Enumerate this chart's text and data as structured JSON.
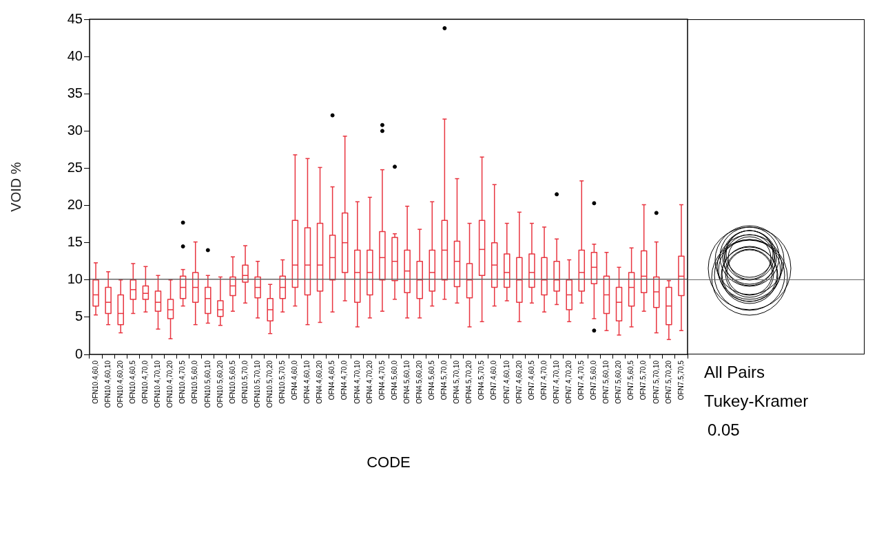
{
  "chart_data": {
    "type": "box",
    "xlabel": "CODE",
    "ylabel": "VOID %",
    "color": "#e8343f",
    "categories": [
      "OFN10.4,60,0",
      "OFN10.4,60,10",
      "OFN10.4,60,20",
      "OFN10.4,60,5",
      "OFN10.4,70,0",
      "OFN10.4,70,10",
      "OFN10.4,70,20",
      "OFN10.4,70,5",
      "OFN10.5,60,0",
      "OFN10.5,60,10",
      "OFN10.5,60,20",
      "OFN10.5,60,5",
      "OFN10.5,70,0",
      "OFN10.5,70,10",
      "OFN10.5,70,20",
      "OFN10.5,70,5",
      "OFN4.4,60,0",
      "OFN4.4,60,10",
      "OFN4.4,60,20",
      "OFN4.4,60,5",
      "OFN4.4,70,0",
      "OFN4.4,70,10",
      "OFN4.4,70,20",
      "OFN4.4,70,5",
      "OFN4.5,60,0",
      "OFN4.5,60,10",
      "OFN4.5,60,20",
      "OFN4.5,60,5",
      "OFN4.5,70,0",
      "OFN4.5,70,10",
      "OFN4.5,70,20",
      "OFN4.5,70,5",
      "OFN7.4,60,0",
      "OFN7.4,60,10",
      "OFN7.4,60,20",
      "OFN7.4,60,5",
      "OFN7.4,70,0",
      "OFN7.4,70,10",
      "OFN7.4,70,20",
      "OFN7.4,70,5",
      "OFN7.5,60,0",
      "OFN7.5,60,10",
      "OFN7.5,60,20",
      "OFN7.5,60,5",
      "OFN7.5,70,0",
      "OFN7.5,70,10",
      "OFN7.5,70,20",
      "OFN7.5,70,5"
    ],
    "boxes": [
      {
        "low": 5.3,
        "q1": 6.5,
        "median": 8,
        "q3": 10,
        "high": 12.3
      },
      {
        "low": 4.0,
        "q1": 5.5,
        "median": 7,
        "q3": 9,
        "high": 11.1
      },
      {
        "low": 2.9,
        "q1": 4,
        "median": 5.5,
        "q3": 8,
        "high": 10.0
      },
      {
        "low": 5.5,
        "q1": 7.4,
        "median": 8.7,
        "q3": 10.0,
        "high": 12.2
      },
      {
        "low": 5.7,
        "q1": 7.4,
        "median": 8.2,
        "q3": 9.2,
        "high": 11.8
      },
      {
        "low": 3.4,
        "q1": 5.8,
        "median": 7.0,
        "q3": 8.5,
        "high": 10.6
      },
      {
        "low": 2.1,
        "q1": 4.8,
        "median": 6.0,
        "q3": 7.4,
        "high": 10.0
      },
      {
        "low": 6.5,
        "q1": 7.5,
        "median": 9,
        "q3": 10.5,
        "high": 11.4,
        "outliers": [
          14.5,
          17.7
        ]
      },
      {
        "low": 4.0,
        "q1": 7,
        "median": 9,
        "q3": 11,
        "high": 15.1
      },
      {
        "low": 4.2,
        "q1": 5.5,
        "median": 7.5,
        "q3": 9,
        "high": 10.6,
        "outliers": [
          14.0
        ]
      },
      {
        "low": 3.9,
        "q1": 5.1,
        "median": 6.0,
        "q3": 7.2,
        "high": 10.4
      },
      {
        "low": 5.8,
        "q1": 7.9,
        "median": 9.2,
        "q3": 10.4,
        "high": 13.1
      },
      {
        "low": 6.9,
        "q1": 9.7,
        "median": 10.6,
        "q3": 12.0,
        "high": 14.6
      },
      {
        "low": 4.9,
        "q1": 7.6,
        "median": 9.0,
        "q3": 10.4,
        "high": 12.5
      },
      {
        "low": 2.8,
        "q1": 4.5,
        "median": 6,
        "q3": 7.5,
        "high": 9.4
      },
      {
        "low": 5.7,
        "q1": 7.5,
        "median": 9,
        "q3": 10.5,
        "high": 12.7
      },
      {
        "low": 6.5,
        "q1": 9,
        "median": 12,
        "q3": 18,
        "high": 26.8
      },
      {
        "low": 4.0,
        "q1": 8,
        "median": 12,
        "q3": 17,
        "high": 26.3
      },
      {
        "low": 4.3,
        "q1": 8.5,
        "median": 12.0,
        "q3": 17.6,
        "high": 25.1
      },
      {
        "low": 5.7,
        "q1": 10,
        "median": 13,
        "q3": 16,
        "high": 22.5,
        "outliers": [
          32.1
        ]
      },
      {
        "low": 7.2,
        "q1": 11,
        "median": 15,
        "q3": 19,
        "high": 29.3
      },
      {
        "low": 3.7,
        "q1": 7,
        "median": 11,
        "q3": 14,
        "high": 20.5
      },
      {
        "low": 4.9,
        "q1": 8,
        "median": 11,
        "q3": 14,
        "high": 21.1
      },
      {
        "low": 5.8,
        "q1": 10,
        "median": 13,
        "q3": 16.5,
        "high": 24.8,
        "outliers": [
          30.0,
          30.8
        ]
      },
      {
        "low": 7.4,
        "q1": 9.9,
        "median": 12.5,
        "q3": 15.7,
        "high": 16.2,
        "outliers": [
          25.2
        ]
      },
      {
        "low": 4.9,
        "q1": 8.3,
        "median": 11.2,
        "q3": 14.0,
        "high": 19.9
      },
      {
        "low": 4.9,
        "q1": 7.5,
        "median": 10,
        "q3": 12.5,
        "high": 16.8
      },
      {
        "low": 6.5,
        "q1": 8.5,
        "median": 11,
        "q3": 14,
        "high": 20.5
      },
      {
        "low": 7.4,
        "q1": 10,
        "median": 14,
        "q3": 18,
        "high": 31.6,
        "outliers": [
          43.8
        ]
      },
      {
        "low": 6.9,
        "q1": 9.1,
        "median": 12.5,
        "q3": 15.2,
        "high": 23.6
      },
      {
        "low": 3.7,
        "q1": 7.6,
        "median": 10.0,
        "q3": 12.2,
        "high": 17.6
      },
      {
        "low": 4.4,
        "q1": 10.6,
        "median": 14.1,
        "q3": 18.0,
        "high": 26.5
      },
      {
        "low": 6.5,
        "q1": 9,
        "median": 12,
        "q3": 15,
        "high": 22.8
      },
      {
        "low": 7.2,
        "q1": 9,
        "median": 11,
        "q3": 13.5,
        "high": 17.6
      },
      {
        "low": 4.4,
        "q1": 7,
        "median": 10,
        "q3": 13,
        "high": 19.1
      },
      {
        "low": 6.9,
        "q1": 9,
        "median": 11,
        "q3": 13.5,
        "high": 17.6
      },
      {
        "low": 5.7,
        "q1": 8,
        "median": 10,
        "q3": 13,
        "high": 17.1
      },
      {
        "low": 6.7,
        "q1": 8.5,
        "median": 10,
        "q3": 12.5,
        "high": 15.5,
        "outliers": [
          21.5
        ]
      },
      {
        "low": 4.4,
        "q1": 6,
        "median": 8,
        "q3": 10,
        "high": 12.7
      },
      {
        "low": 6.9,
        "q1": 8.5,
        "median": 11,
        "q3": 14,
        "high": 23.3
      },
      {
        "low": 4.8,
        "q1": 9.5,
        "median": 11.7,
        "q3": 13.7,
        "high": 14.8,
        "outliers": [
          3.2,
          20.3
        ]
      },
      {
        "low": 3.2,
        "q1": 5.5,
        "median": 8,
        "q3": 10.5,
        "high": 13.7
      },
      {
        "low": 2.6,
        "q1": 4.5,
        "median": 7,
        "q3": 9,
        "high": 11.7
      },
      {
        "low": 3.7,
        "q1": 6.5,
        "median": 9,
        "q3": 11,
        "high": 14.3
      },
      {
        "low": 5.8,
        "q1": 8.3,
        "median": 10.5,
        "q3": 13.9,
        "high": 20.1
      },
      {
        "low": 2.9,
        "q1": 6.3,
        "median": 8.4,
        "q3": 10.4,
        "high": 15.1,
        "outliers": [
          19.0
        ]
      },
      {
        "low": 2.0,
        "q1": 4.0,
        "median": 6.5,
        "q3": 9.0,
        "high": 9.9
      },
      {
        "low": 3.2,
        "q1": 7.9,
        "median": 10.5,
        "q3": 13.2,
        "high": 20.1
      }
    ],
    "ylim": [
      0,
      45
    ],
    "yticks": [
      0,
      5,
      10,
      15,
      20,
      25,
      30,
      35,
      40,
      45
    ],
    "grid": false,
    "legend": false,
    "ref_lines": [
      {
        "axis": "y",
        "value": 10.1,
        "color": "#666666"
      }
    ],
    "annotations": [
      "All Pairs",
      "Tukey-Kramer",
      "0.05"
    ]
  }
}
